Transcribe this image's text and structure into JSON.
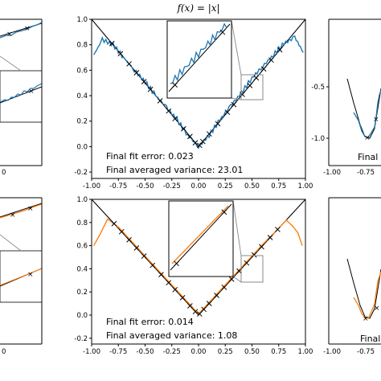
{
  "title": "f(x) = |x|",
  "colors": {
    "blue": "#1f77b4",
    "orange": "#ff7f0e",
    "target": "#000000",
    "connector": "#888888"
  },
  "chart_data": [
    {
      "type": "line",
      "panel": "top-center",
      "xlim": [
        -1.0,
        1.0
      ],
      "ylim": [
        -0.25,
        1.0
      ],
      "xticks": [
        "-1.00",
        "-0.75",
        "-0.50",
        "-0.25",
        "0.00",
        "0.25",
        "0.50",
        "0.75",
        "1.00"
      ],
      "yticks": [
        "-0.2",
        "0.0",
        "0.2",
        "0.4",
        "0.6",
        "0.8",
        "1.0"
      ],
      "series_color": "blue",
      "target": "|x|",
      "fit": {
        "x": [
          -0.98,
          -0.9,
          -0.8,
          -0.7,
          -0.6,
          -0.5,
          -0.4,
          -0.3,
          -0.2,
          -0.1,
          0.0,
          0.1,
          0.2,
          0.3,
          0.4,
          0.5,
          0.6,
          0.7,
          0.8,
          0.9,
          0.98
        ],
        "y": [
          0.72,
          0.84,
          0.8,
          0.7,
          0.6,
          0.51,
          0.4,
          0.31,
          0.21,
          0.09,
          0.0,
          0.09,
          0.21,
          0.32,
          0.42,
          0.54,
          0.63,
          0.72,
          0.81,
          0.86,
          0.74
        ]
      },
      "samples_x": [
        -0.81,
        -0.73,
        -0.65,
        -0.58,
        -0.51,
        -0.45,
        -0.36,
        -0.28,
        -0.22,
        -0.14,
        -0.08,
        -0.03,
        0.01,
        0.04,
        0.1,
        0.18,
        0.27,
        0.33,
        0.41,
        0.48,
        0.54,
        0.61,
        0.68,
        0.76
      ],
      "annotations": [
        "Final fit error: 0.023",
        "Final averaged variance: 23.01"
      ]
    },
    {
      "type": "line",
      "panel": "bottom-center",
      "xlim": [
        -1.0,
        1.0
      ],
      "ylim": [
        -0.25,
        1.0
      ],
      "xticks": [
        "-1.00",
        "-0.75",
        "-0.50",
        "-0.25",
        "0.00",
        "0.25",
        "0.50",
        "0.75",
        "1.00"
      ],
      "yticks": [
        "-0.2",
        "0.0",
        "0.2",
        "0.4",
        "0.6",
        "0.8",
        "1.0"
      ],
      "series_color": "orange",
      "target": "|x|",
      "fit": {
        "x": [
          -0.98,
          -0.92,
          -0.85,
          -0.75,
          -0.6,
          -0.45,
          -0.3,
          -0.15,
          0.0,
          0.15,
          0.3,
          0.45,
          0.6,
          0.75,
          0.82,
          0.88,
          0.93,
          0.97
        ],
        "y": [
          0.6,
          0.7,
          0.83,
          0.76,
          0.61,
          0.46,
          0.31,
          0.16,
          0.01,
          0.16,
          0.31,
          0.46,
          0.61,
          0.75,
          0.82,
          0.77,
          0.71,
          0.6
        ]
      },
      "samples_x": [
        -0.79,
        -0.72,
        -0.65,
        -0.58,
        -0.51,
        -0.43,
        -0.35,
        -0.28,
        -0.22,
        -0.15,
        -0.08,
        -0.03,
        0.01,
        0.05,
        0.1,
        0.17,
        0.24,
        0.31,
        0.38,
        0.45,
        0.52,
        0.59,
        0.67,
        0.74
      ],
      "annotations": [
        "Final fit error: 0.014",
        "Final averaged variance: 1.08"
      ]
    },
    {
      "type": "line",
      "panel": "top-right (partial)",
      "ylim": [
        -1.25,
        0.1
      ],
      "xticks": [
        "-1.00",
        "-0.75"
      ],
      "yticks": [
        "-0.5",
        "-1.0"
      ],
      "series_color": "blue",
      "annotations": [
        "Final",
        "Final"
      ]
    },
    {
      "type": "line",
      "panel": "bottom-right (partial)",
      "xticks": [
        "-1.00",
        "-0.75"
      ],
      "series_color": "orange",
      "annotations": [
        "Final",
        "Final"
      ]
    },
    {
      "type": "line",
      "panel": "top-left (partial)",
      "series_color": "blue",
      "xticks": [
        "0"
      ]
    },
    {
      "type": "line",
      "panel": "bottom-left (partial)",
      "series_color": "orange",
      "xticks": [
        "0"
      ]
    }
  ]
}
